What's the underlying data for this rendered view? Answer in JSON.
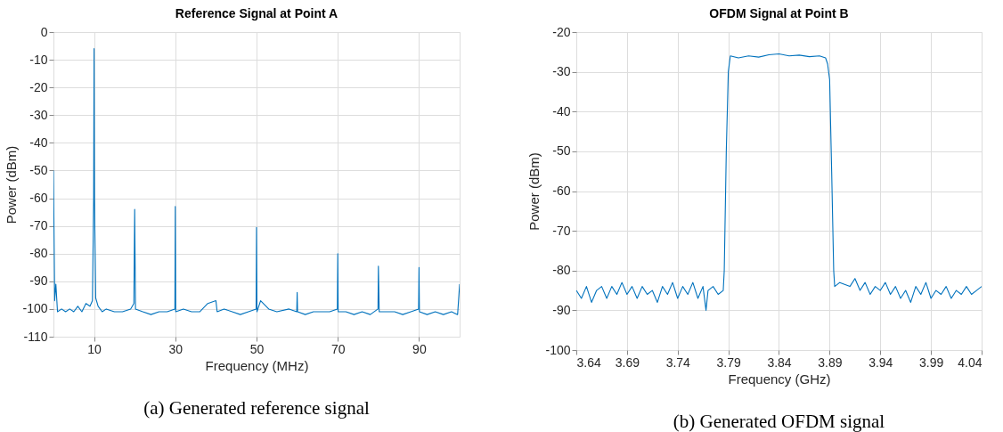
{
  "chart_data": [
    {
      "type": "line",
      "title": "Reference Signal at Point A",
      "xlabel": "Frequency (MHz)",
      "ylabel": "Power (dBm)",
      "xlim": [
        0,
        100
      ],
      "xticks": [
        10,
        30,
        50,
        70,
        90
      ],
      "ylim": [
        -110,
        0
      ],
      "yticks": [
        -110,
        -100,
        -90,
        -80,
        -70,
        -60,
        -50,
        -40,
        -30,
        -20,
        -10,
        0
      ],
      "grid": true,
      "annotations": [
        "(a) Generated reference signal"
      ],
      "series": [
        {
          "color": "#0072bd",
          "x": [
            0,
            0.3,
            0.6,
            1,
            2,
            3,
            4,
            5,
            6,
            7,
            8,
            9,
            9.6,
            9.9,
            10,
            10.1,
            10.4,
            11,
            12,
            13,
            15,
            17,
            19,
            19.8,
            20,
            20.2,
            22,
            24,
            26,
            28,
            29.9,
            30,
            30.1,
            32,
            34,
            36,
            38,
            40,
            40.3,
            42,
            44,
            46,
            48,
            49.9,
            50,
            50.1,
            51,
            53,
            55,
            58,
            59.9,
            60,
            60.1,
            62,
            64,
            66,
            68,
            69.9,
            70,
            70.1,
            72,
            74,
            76,
            78,
            79.9,
            80,
            80.2,
            82,
            84,
            86,
            88,
            89.9,
            90,
            90.1,
            92,
            94,
            96,
            98,
            99.5,
            100
          ],
          "values": [
            -50,
            -97,
            -91,
            -101,
            -100,
            -101,
            -100,
            -101,
            -99,
            -101,
            -98,
            -99,
            -97,
            -60,
            -6,
            -60,
            -96,
            -99,
            -101,
            -100,
            -101,
            -101,
            -100,
            -98,
            -64,
            -100,
            -101,
            -102,
            -101,
            -101,
            -100,
            -63,
            -101,
            -100,
            -101,
            -101,
            -98,
            -97,
            -101,
            -100,
            -101,
            -102,
            -101,
            -100,
            -70.5,
            -101,
            -97,
            -100,
            -101,
            -100,
            -101,
            -94,
            -101,
            -102,
            -101,
            -101,
            -101,
            -100,
            -80,
            -101,
            -101,
            -102,
            -101,
            -102,
            -100,
            -84.5,
            -101,
            -101,
            -101,
            -102,
            -101,
            -100,
            -85,
            -101,
            -102,
            -101,
            -102,
            -101,
            -102,
            -91
          ]
        }
      ]
    },
    {
      "type": "line",
      "title": "OFDM Signal at Point B",
      "xlabel": "Frequency (GHz)",
      "ylabel": "Power (dBm)",
      "xlim": [
        3.64,
        4.04
      ],
      "xticks": [
        3.64,
        3.69,
        3.74,
        3.79,
        3.84,
        3.89,
        3.94,
        3.99,
        4.04
      ],
      "ylim": [
        -100,
        -20
      ],
      "yticks": [
        -100,
        -90,
        -80,
        -70,
        -60,
        -50,
        -40,
        -30,
        -20
      ],
      "grid": true,
      "annotations": [
        "(b) Generated OFDM signal"
      ],
      "series": [
        {
          "color": "#0072bd",
          "x": [
            3.64,
            3.645,
            3.65,
            3.655,
            3.66,
            3.665,
            3.67,
            3.675,
            3.68,
            3.685,
            3.69,
            3.695,
            3.7,
            3.705,
            3.71,
            3.715,
            3.72,
            3.725,
            3.73,
            3.735,
            3.74,
            3.745,
            3.75,
            3.755,
            3.76,
            3.765,
            3.768,
            3.77,
            3.775,
            3.78,
            3.785,
            3.786,
            3.788,
            3.79,
            3.792,
            3.8,
            3.81,
            3.82,
            3.83,
            3.84,
            3.85,
            3.86,
            3.87,
            3.88,
            3.886,
            3.888,
            3.89,
            3.892,
            3.894,
            3.895,
            3.9,
            3.91,
            3.915,
            3.92,
            3.925,
            3.93,
            3.935,
            3.94,
            3.945,
            3.95,
            3.955,
            3.96,
            3.965,
            3.97,
            3.975,
            3.98,
            3.985,
            3.99,
            3.995,
            4.0,
            4.005,
            4.01,
            4.015,
            4.02,
            4.025,
            4.03,
            4.035,
            4.04
          ],
          "values": [
            -85,
            -87,
            -84,
            -88,
            -85,
            -84,
            -87,
            -84,
            -86,
            -83,
            -86,
            -84,
            -87,
            -84,
            -86,
            -85,
            -88,
            -84,
            -86,
            -83,
            -87,
            -84,
            -86,
            -83,
            -87,
            -84,
            -90,
            -85,
            -84,
            -86,
            -85,
            -80,
            -50,
            -30,
            -26,
            -26.5,
            -26,
            -26.3,
            -25.7,
            -25.5,
            -26,
            -25.8,
            -26.2,
            -26,
            -26.5,
            -28,
            -32,
            -55,
            -80,
            -84,
            -83,
            -84,
            -82,
            -85,
            -83,
            -86,
            -84,
            -85,
            -83,
            -86,
            -84,
            -87,
            -85,
            -88,
            -84,
            -86,
            -83,
            -87,
            -85,
            -86,
            -84,
            -87,
            -85,
            -86,
            -84,
            -86,
            -85,
            -84
          ]
        }
      ]
    }
  ]
}
